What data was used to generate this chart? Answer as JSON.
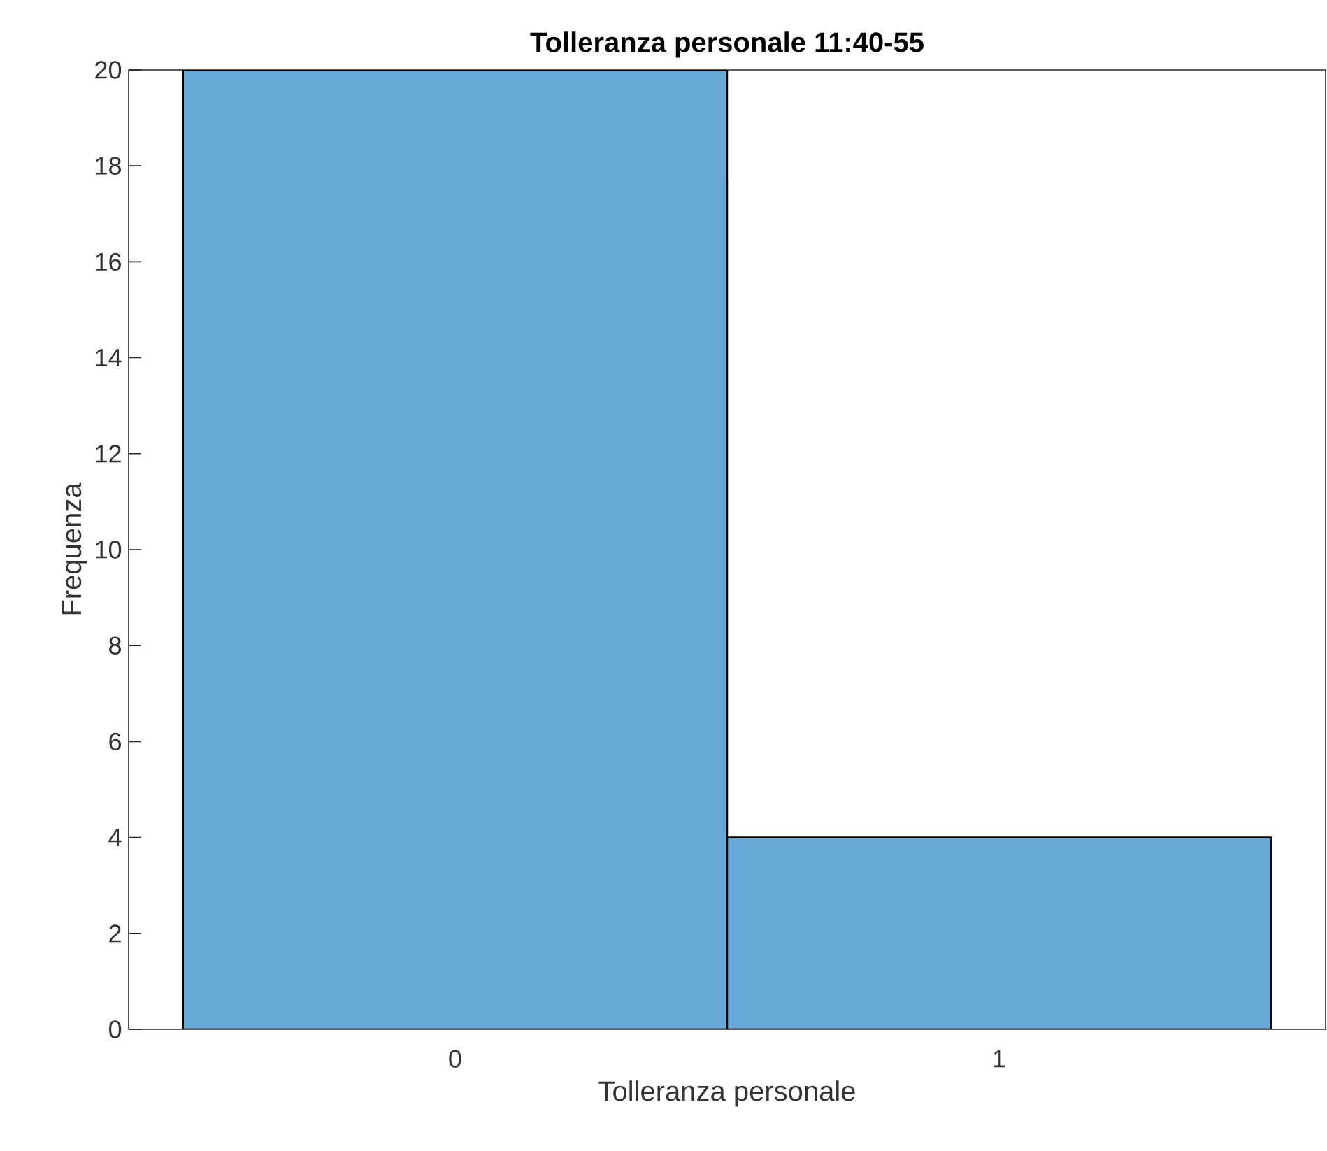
{
  "chart_data": {
    "type": "histogram",
    "title": "Tolleranza personale 11:40-55",
    "xlabel": "Tolleranza personale",
    "ylabel": "Frequenza",
    "bins": [
      -0.5,
      0.5,
      1.5
    ],
    "values": [
      20,
      4
    ],
    "color": "#66a9d7",
    "xlim": [
      -0.6,
      1.6
    ],
    "xticks": [
      0,
      1
    ],
    "ylim": [
      0,
      20
    ],
    "yticks": [
      0,
      2,
      4,
      6,
      8,
      10,
      12,
      14,
      16,
      18,
      20
    ],
    "grid": false
  }
}
